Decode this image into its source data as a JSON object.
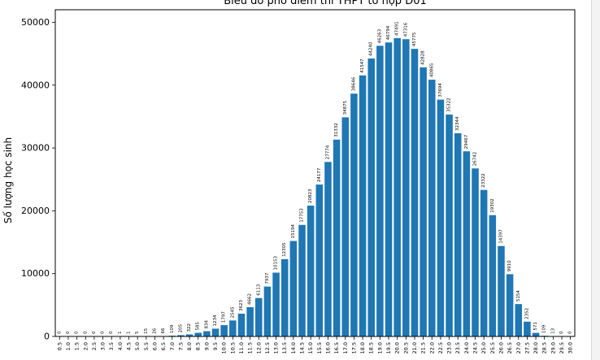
{
  "chart_data": {
    "type": "bar",
    "title": "Biểu đồ phổ điểm thi THPT tổ hợp D01",
    "xlabel": "",
    "ylabel": "Số lượng học sinh",
    "ylim": [
      0,
      52000
    ],
    "yticks": [
      0,
      10000,
      20000,
      30000,
      40000,
      50000
    ],
    "ytick_labels": [
      "0",
      "10000",
      "20000",
      "30000",
      "40000",
      "50000"
    ],
    "grid": false,
    "bar_color": "#1f77b4",
    "categories": [
      "0.5",
      "1.0",
      "1.5",
      "2.0",
      "2.5",
      "3.0",
      "3.5",
      "4.0",
      "4.5",
      "5.0",
      "5.5",
      "6.0",
      "6.5",
      "7.0",
      "7.5",
      "8.0",
      "8.5",
      "9.0",
      "9.5",
      "10.0",
      "10.5",
      "11.0",
      "11.5",
      "12.0",
      "12.5",
      "13.0",
      "13.5",
      "14.0",
      "14.5",
      "15.0",
      "15.5",
      "16.0",
      "16.5",
      "17.0",
      "17.5",
      "18.0",
      "18.5",
      "19.0",
      "19.5",
      "20.0",
      "20.5",
      "21.0",
      "21.5",
      "22.0",
      "22.5",
      "23.0",
      "23.5",
      "24.0",
      "24.5",
      "25.0",
      "25.5",
      "26.0",
      "26.5",
      "27.0",
      "27.5",
      "28.0",
      "28.5",
      "29.0",
      "29.5",
      "30.0"
    ],
    "values": [
      0,
      0,
      0,
      0,
      0,
      0,
      0,
      1,
      1,
      5,
      15,
      26,
      66,
      109,
      205,
      322,
      585,
      834,
      1234,
      1797,
      2545,
      3623,
      4662,
      6113,
      7937,
      10153,
      12305,
      15194,
      17753,
      20823,
      24177,
      27774,
      31332,
      34875,
      38646,
      41547,
      44240,
      46263,
      46794,
      47491,
      47316,
      45775,
      42828,
      40865,
      37694,
      35322,
      32344,
      29467,
      26742,
      23322,
      19302,
      14397,
      9910,
      5154,
      2352,
      571,
      109,
      13,
      0,
      0
    ],
    "data_labels": [
      "0",
      "0",
      "0",
      "0",
      "0",
      "0",
      "0",
      "1",
      "1",
      "5",
      "15",
      "26",
      "66",
      "109",
      "205",
      "322",
      "585",
      "834",
      "1234",
      "1797",
      "2545",
      "3623",
      "4662",
      "6113",
      "7937",
      "10153",
      "12305",
      "15194",
      "17753",
      "20823",
      "24177",
      "27774",
      "31332",
      "34875",
      "38646",
      "41547",
      "44240",
      "46263",
      "46794",
      "47491",
      "47316",
      "45775",
      "42828",
      "40865",
      "37694",
      "35322",
      "32344",
      "29467",
      "26742",
      "23322",
      "19302",
      "14397",
      "9910",
      "5154",
      "2352",
      "571",
      "109",
      "13",
      "0",
      "0"
    ]
  }
}
